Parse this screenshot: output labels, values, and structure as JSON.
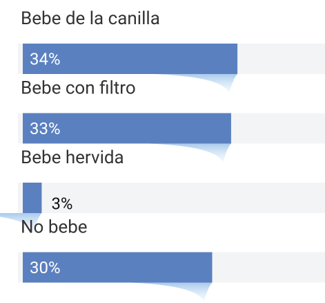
{
  "chart_data": {
    "type": "bar",
    "orientation": "horizontal",
    "categories": [
      "Bebe de la canilla",
      "Bebe con filtro",
      "Bebe hervida",
      "No bebe"
    ],
    "values": [
      34,
      33,
      3,
      30
    ],
    "value_labels": [
      "34%",
      "33%",
      "3%",
      "30%"
    ],
    "color": "#5b80c0"
  }
}
